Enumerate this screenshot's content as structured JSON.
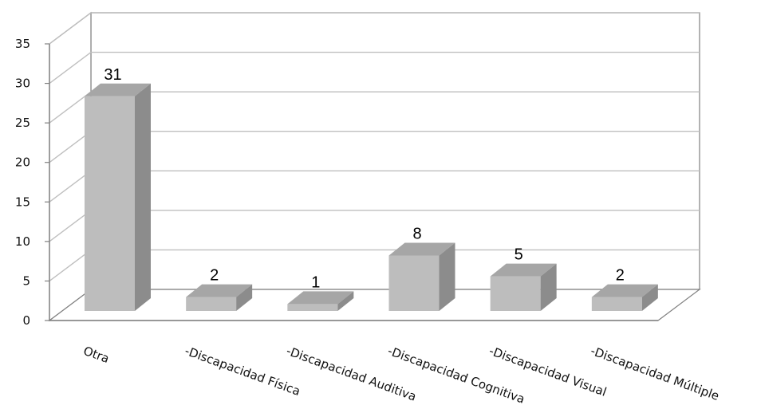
{
  "chart_data": {
    "type": "bar",
    "title": "",
    "xlabel": "",
    "ylabel": "",
    "categories": [
      "Otra",
      "-Discapacidad Física",
      "-Discapacidad Auditiva",
      "-Discapacidad Cognitiva",
      "-Discapacidad Visual",
      "-Discapacidad Múltiple"
    ],
    "values": [
      31,
      2,
      1,
      8,
      5,
      2
    ],
    "ylim": [
      0,
      35
    ],
    "yticks": [
      0,
      5,
      10,
      15,
      20,
      25,
      30,
      35
    ],
    "grid": true,
    "three_d": true,
    "colors": {
      "bar_front": "#BDBDBD",
      "bar_top": "#A6A6A6",
      "bar_side": "#8C8C8C",
      "grid": "#BFBFBF",
      "axis": "#808080"
    }
  }
}
